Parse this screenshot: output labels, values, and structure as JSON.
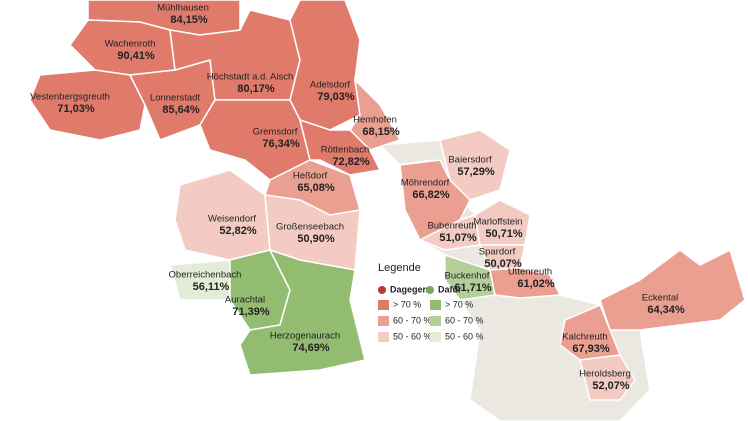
{
  "regions": [
    {
      "name": "Mühlhausen",
      "result": "84,15%",
      "color": "#e07b6b"
    },
    {
      "name": "Wachenroth",
      "result": "90,41%",
      "color": "#e07b6b"
    },
    {
      "name": "Vestenbergsgreuth",
      "result": "71,03%",
      "color": "#e07b6b"
    },
    {
      "name": "Lonnerstadt",
      "result": "85,64%",
      "color": "#e07b6b"
    },
    {
      "name": "Höchstadt a.d. Aisch",
      "result": "80,17%",
      "color": "#e07b6b"
    },
    {
      "name": "Adelsdorf",
      "result": "79,03%",
      "color": "#e07b6b"
    },
    {
      "name": "Hemhofen",
      "result": "68,15%",
      "color": "#eb9f91"
    },
    {
      "name": "Gremsdorf",
      "result": "76,34%",
      "color": "#e07b6b"
    },
    {
      "name": "Röttenbach",
      "result": "72,82%",
      "color": "#e07b6b"
    },
    {
      "name": "Heßdorf",
      "result": "65,08%",
      "color": "#eb9f91"
    },
    {
      "name": "Baiersdorf",
      "result": "57,29%",
      "color": "#f3cbc2"
    },
    {
      "name": "Möhrendorf",
      "result": "66,82%",
      "color": "#eb9f91"
    },
    {
      "name": "Weisendorf",
      "result": "52,82%",
      "color": "#f3cbc2"
    },
    {
      "name": "Großenseebach",
      "result": "50,90%",
      "color": "#f3cbc2"
    },
    {
      "name": "Bubenreuth",
      "result": "51,07%",
      "color": "#f3cbc2"
    },
    {
      "name": "Marloffstein",
      "result": "50,71%",
      "color": "#f3cbc2"
    },
    {
      "name": "Spardorf",
      "result": "50,07%",
      "color": "#f3cbc2"
    },
    {
      "name": "Oberreichenbach",
      "result": "56,11%",
      "color": "#e3ecd7"
    },
    {
      "name": "Buckenhof",
      "result": "61,71%",
      "color": "#b5cf9b"
    },
    {
      "name": "Uttenreuth",
      "result": "61,02%",
      "color": "#eb9f91"
    },
    {
      "name": "Eckental",
      "result": "64,34%",
      "color": "#eb9f91"
    },
    {
      "name": "Aurachtal",
      "result": "71,39%",
      "color": "#92bc70"
    },
    {
      "name": "Herzogenaurach",
      "result": "74,69%",
      "color": "#92bc70"
    },
    {
      "name": "Kalchreuth",
      "result": "67,93%",
      "color": "#eb9f91"
    },
    {
      "name": "Heroldsberg",
      "result": "52,07%",
      "color": "#f3cbc2"
    }
  ],
  "legend": {
    "title": "Legende",
    "against": "Dagegen",
    "for": "Dafür",
    "against_ranges": [
      {
        "label": "> 70 %",
        "color": "#e07b6b"
      },
      {
        "label": "60 - 70 %",
        "color": "#eb9f91"
      },
      {
        "label": "50 - 60 %",
        "color": "#f3cbc2"
      }
    ],
    "for_ranges": [
      {
        "label": "> 70 %",
        "color": "#92bc70"
      },
      {
        "label": "60 - 70 %",
        "color": "#b5cf9b"
      },
      {
        "label": "50 - 60 %",
        "color": "#e3ecd7"
      }
    ]
  }
}
